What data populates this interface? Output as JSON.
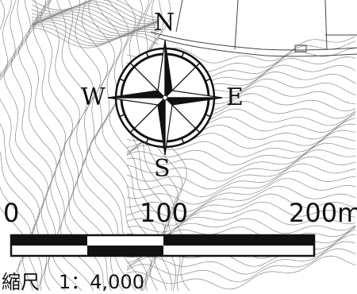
{
  "compass": {
    "north": "N",
    "south": "S",
    "west": "W",
    "east": "E"
  },
  "scale_bar": {
    "labels": [
      "0",
      "100",
      "200m"
    ],
    "ratio_text": "縮尺　1：4,000"
  },
  "colors": {
    "ink": "#111111",
    "paper": "#ffffff",
    "contour": "#8a8a8a"
  }
}
